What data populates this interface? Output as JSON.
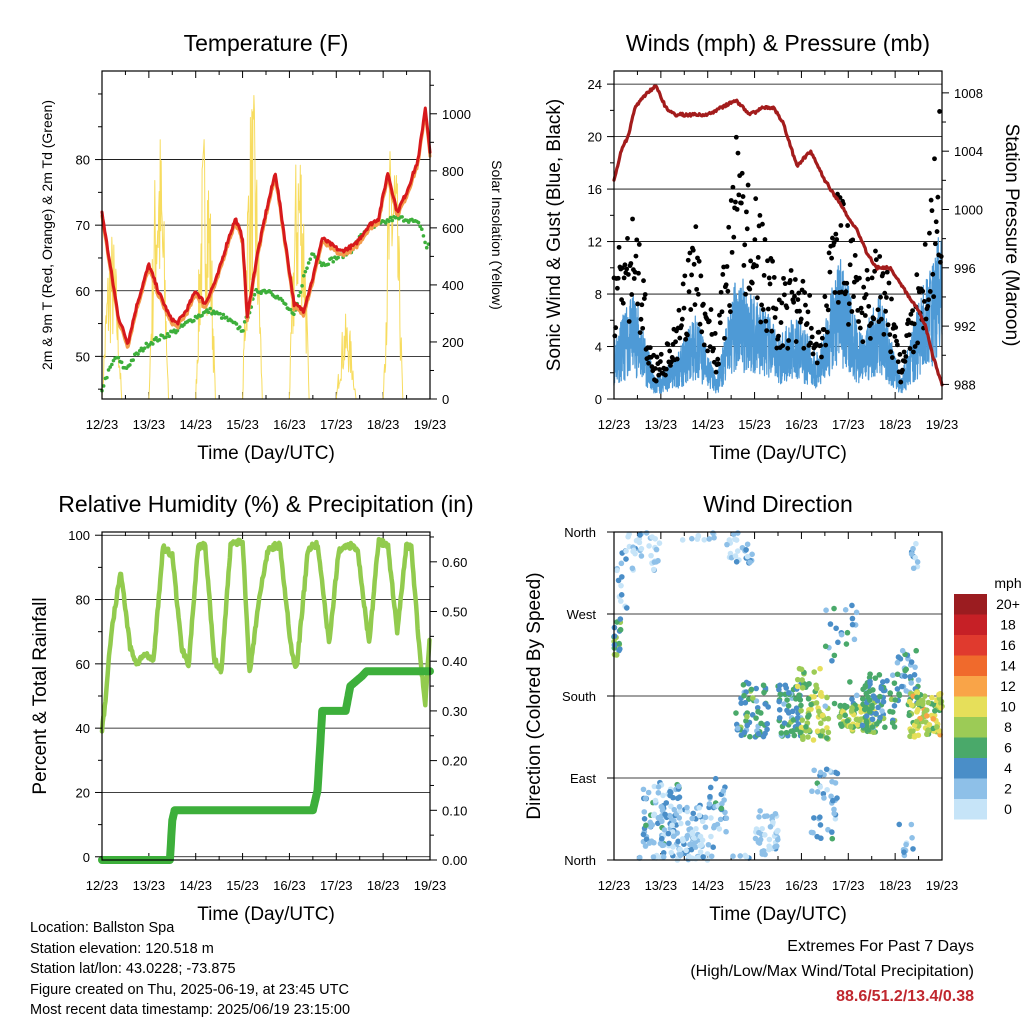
{
  "x_ticks": [
    "12/23",
    "13/23",
    "14/23",
    "15/23",
    "16/23",
    "17/23",
    "18/23",
    "19/23"
  ],
  "chart_data": [
    {
      "type": "line",
      "title": "Temperature (F)",
      "xlabel": "Time (Day/UTC)",
      "ylabel": "2m & 9m T (Red, Orange) & 2m Td (Green)",
      "ylabel_right": "Solar Insolation (Yellow)",
      "ylim": [
        43.5,
        93.5
      ],
      "ylim_right": [
        0,
        1150
      ],
      "yticks": [
        "50",
        "60",
        "70",
        "80"
      ],
      "yticks_right": [
        "0",
        "200",
        "400",
        "600",
        "800",
        "1000"
      ],
      "colors": {
        "t2m": "#d7191c",
        "t9m": "#f39c4b",
        "td": "#3daf3b",
        "solar": "#f7dc5f"
      },
      "series": [
        {
          "name": "2m T",
          "x": [
            0,
            0.15,
            0.35,
            0.55,
            0.75,
            1.0,
            1.2,
            1.45,
            1.6,
            1.8,
            2.0,
            2.2,
            2.45,
            2.7,
            2.85,
            3.0,
            3.1,
            3.3,
            3.5,
            3.7,
            3.9,
            4.1,
            4.3,
            4.5,
            4.7,
            4.9,
            5.1,
            5.4,
            5.7,
            5.9,
            6.1,
            6.3,
            6.5,
            6.75,
            6.9,
            7.0
          ],
          "values": [
            72,
            65,
            56,
            52,
            58,
            64,
            60,
            56,
            55,
            57,
            60,
            58,
            62,
            68,
            71,
            68,
            56,
            65,
            72,
            78,
            68,
            58,
            57,
            62,
            68,
            67,
            66,
            67,
            70,
            71,
            78,
            72,
            75,
            80,
            88,
            81
          ]
        },
        {
          "name": "2m Td",
          "x": [
            0,
            0.1,
            0.3,
            0.5,
            0.7,
            1.0,
            1.3,
            1.6,
            2.0,
            2.3,
            2.6,
            2.8,
            3.0,
            3.3,
            3.6,
            3.9,
            4.1,
            4.3,
            4.5,
            4.7,
            5.0,
            5.3,
            5.6,
            5.9,
            6.2,
            6.5,
            6.8,
            6.95,
            7.0
          ],
          "values": [
            45,
            47,
            50,
            48,
            50,
            52,
            53,
            54,
            56,
            57,
            56,
            55,
            54,
            60,
            60,
            58,
            56,
            62,
            66,
            64,
            65,
            66,
            69,
            70,
            71,
            71,
            70,
            66,
            69
          ]
        },
        {
          "name": "Solar Insolation",
          "days_start": 0.5,
          "days_peak": [
            600,
            1000,
            1000,
            1100,
            1000,
            300,
            1000,
            1100
          ]
        }
      ]
    },
    {
      "type": "scatter",
      "title": "Winds (mph) & Pressure (mb)",
      "xlabel": "Time (Day/UTC)",
      "ylabel": "Sonic Wind & Gust (Blue, Black)",
      "ylabel_right": "Station Pressure (Maroon)",
      "ylim": [
        0,
        25
      ],
      "ylim_right": [
        987,
        1009.5
      ],
      "yticks": [
        "0",
        "4",
        "8",
        "12",
        "16",
        "20",
        "24"
      ],
      "yticks_right": [
        "988",
        "992",
        "996",
        "1000",
        "1004",
        "1008"
      ],
      "colors": {
        "wind": "#4e9ad6",
        "gust": "#000000",
        "pressure": "#a31c1c"
      },
      "series": [
        {
          "name": "Pressure",
          "x": [
            0,
            0.15,
            0.3,
            0.45,
            0.7,
            0.9,
            1.1,
            1.3,
            1.6,
            2.0,
            2.3,
            2.6,
            2.9,
            3.2,
            3.4,
            3.6,
            3.9,
            4.2,
            4.5,
            4.7,
            4.9,
            5.2,
            5.4,
            5.6,
            5.9,
            6.1,
            6.3,
            6.5,
            6.65,
            6.8,
            7.0
          ],
          "values": [
            1002,
            1004,
            1005,
            1007,
            1008,
            1008.5,
            1007,
            1006.5,
            1006.5,
            1006.5,
            1007,
            1007.5,
            1006.5,
            1007,
            1007,
            1006,
            1003,
            1004,
            1002,
            1001,
            1000,
            998.5,
            997,
            996,
            996,
            995,
            994,
            993,
            992,
            990,
            988
          ]
        },
        {
          "name": "Sonic Wind",
          "typical": [
            3,
            5,
            1,
            2,
            4,
            1,
            6,
            5,
            3,
            4,
            2,
            7,
            3,
            5,
            1,
            5,
            8
          ]
        },
        {
          "name": "Gust",
          "typical": [
            7,
            10,
            2,
            4,
            9,
            3,
            14,
            10,
            6,
            7,
            4,
            12,
            6,
            9,
            2,
            8,
            16
          ]
        }
      ]
    },
    {
      "type": "line",
      "title": "Relative Humidity (%) & Precipitation (in)",
      "xlabel": "Time (Day/UTC)",
      "ylabel": "Percent & Total Rainfall",
      "ylim": [
        -1,
        101
      ],
      "ylim_right": [
        0,
        0.66
      ],
      "yticks": [
        "0",
        "20",
        "40",
        "60",
        "80",
        "100"
      ],
      "yticks_right": [
        "0.00",
        "0.10",
        "0.20",
        "0.30",
        "0.40",
        "0.50",
        "0.60"
      ],
      "colors": {
        "rh": "#92cb4e",
        "precip": "#3daf3b"
      },
      "series": [
        {
          "name": "RH",
          "x": [
            0,
            0.05,
            0.2,
            0.4,
            0.6,
            0.75,
            0.9,
            1.1,
            1.3,
            1.5,
            1.7,
            1.85,
            2.05,
            2.2,
            2.4,
            2.55,
            2.75,
            3.0,
            3.15,
            3.35,
            3.55,
            3.8,
            4.05,
            4.15,
            4.4,
            4.6,
            4.85,
            5.05,
            5.25,
            5.45,
            5.7,
            5.9,
            6.1,
            6.3,
            6.5,
            6.6,
            6.8,
            6.9,
            7.0
          ],
          "values": [
            40,
            45,
            70,
            89,
            65,
            60,
            63,
            61,
            96,
            94,
            65,
            60,
            96,
            97,
            61,
            58,
            98,
            98,
            57,
            80,
            96,
            97,
            63,
            58,
            96,
            97,
            66,
            95,
            97,
            96,
            66,
            98,
            97,
            70,
            97,
            96,
            60,
            48,
            70
          ]
        },
        {
          "name": "Precipitation",
          "x": [
            0,
            1.45,
            1.5,
            1.55,
            4.5,
            4.6,
            4.7,
            5.2,
            5.3,
            5.55,
            5.65,
            7.0
          ],
          "values": [
            0,
            0,
            0.08,
            0.1,
            0.1,
            0.14,
            0.3,
            0.3,
            0.35,
            0.37,
            0.38,
            0.38
          ]
        }
      ]
    },
    {
      "type": "scatter",
      "title": "Wind Direction",
      "xlabel": "Time (Day/UTC)",
      "ylabel": "Direction (Colored By Speed)",
      "yticks": [
        "North",
        "East",
        "South",
        "West",
        "North"
      ],
      "legend_title": "mph",
      "legend_labels": [
        "20+",
        "18",
        "16",
        "14",
        "12",
        "10",
        "8",
        "6",
        "4",
        "2",
        "0"
      ],
      "legend_colors": [
        "#9b1c20",
        "#c62026",
        "#e03a2e",
        "#f06a2c",
        "#f9a448",
        "#e6df5a",
        "#9ccb56",
        "#4aa96a",
        "#4a8ec8",
        "#8ec0e8",
        "#c6e4f8"
      ]
    }
  ],
  "info": {
    "location": "Location: Ballston Spa",
    "elevation": "Station elevation: 120.518 m",
    "latlon": "Station lat/lon: 43.0228; -73.875",
    "created": "Figure created on Thu, 2025-06-19, at 23:45 UTC",
    "latest": "Most recent data timestamp: 2025/06/19 23:15:00"
  },
  "extremes": {
    "line1": "Extremes For Past 7 Days",
    "line2": "(High/Low/Max Wind/Total Precipitation)",
    "values": "88.6/51.2/13.4/0.38"
  }
}
